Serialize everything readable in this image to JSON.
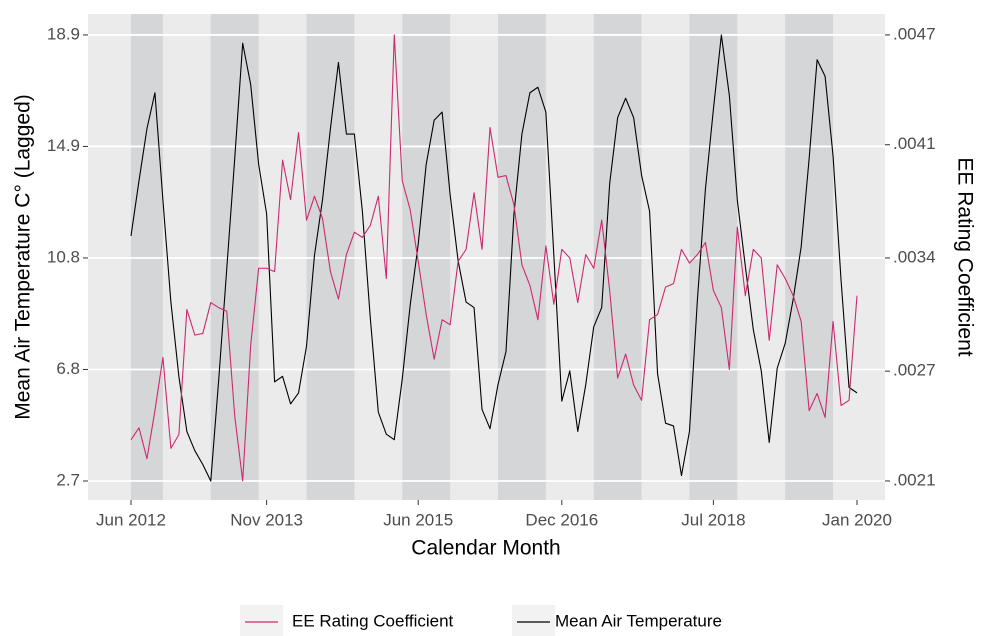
{
  "chart_data": {
    "type": "line",
    "x_label": "Calendar Month",
    "y_label": "Mean Air Temperature C° (Lagged)",
    "y2_label": "EE Rating Coefficient",
    "x": [
      "Jun 2012",
      "Jul 2012",
      "Aug 2012",
      "Sep 2012",
      "Oct 2012",
      "Nov 2012",
      "Dec 2012",
      "Jan 2013",
      "Feb 2013",
      "Mar 2013",
      "Apr 2013",
      "May 2013",
      "Jun 2013",
      "Jul 2013",
      "Aug 2013",
      "Sep 2013",
      "Oct 2013",
      "Nov 2013",
      "Dec 2013",
      "Jan 2014",
      "Feb 2014",
      "Mar 2014",
      "Apr 2014",
      "May 2014",
      "Jun 2014",
      "Jul 2014",
      "Aug 2014",
      "Sep 2014",
      "Oct 2014",
      "Nov 2014",
      "Dec 2014",
      "Jan 2015",
      "Feb 2015",
      "Mar 2015",
      "Apr 2015",
      "May 2015",
      "Jun 2015",
      "Jul 2015",
      "Aug 2015",
      "Sep 2015",
      "Oct 2015",
      "Nov 2015",
      "Dec 2015",
      "Jan 2016",
      "Feb 2016",
      "Mar 2016",
      "Apr 2016",
      "May 2016",
      "Jun 2016",
      "Jul 2016",
      "Aug 2016",
      "Sep 2016",
      "Oct 2016",
      "Nov 2016",
      "Dec 2016",
      "Jan 2017",
      "Feb 2017",
      "Mar 2017",
      "Apr 2017",
      "May 2017",
      "Jun 2017",
      "Jul 2017",
      "Aug 2017",
      "Sep 2017",
      "Oct 2017",
      "Nov 2017",
      "Dec 2017",
      "Jan 2018",
      "Feb 2018",
      "Mar 2018",
      "Apr 2018",
      "May 2018",
      "Jun 2018",
      "Jul 2018",
      "Aug 2018",
      "Sep 2018",
      "Oct 2018",
      "Nov 2018",
      "Dec 2018",
      "Jan 2019",
      "Feb 2019",
      "Mar 2019",
      "Apr 2019",
      "May 2019",
      "Jun 2019",
      "Jul 2019",
      "Aug 2019",
      "Sep 2019",
      "Oct 2019",
      "Nov 2019",
      "Dec 2019",
      "Jan 2020"
    ],
    "xlim": [
      "Jun 2012",
      "Jan 2020"
    ],
    "xticks": [
      "Jun 2012",
      "Nov 2013",
      "Jun 2015",
      "Dec 2016",
      "Jul 2018",
      "Jan 2020"
    ],
    "bands": [
      [
        "Jun 2012",
        "Oct 2012"
      ],
      [
        "Apr 2013",
        "Oct 2013"
      ],
      [
        "Apr 2014",
        "Oct 2014"
      ],
      [
        "Apr 2015",
        "Oct 2015"
      ],
      [
        "Apr 2016",
        "Oct 2016"
      ],
      [
        "Apr 2017",
        "Oct 2017"
      ],
      [
        "Apr 2018",
        "Oct 2018"
      ],
      [
        "Apr 2019",
        "Oct 2019"
      ]
    ],
    "band_color": "#d5d6d8",
    "ylim": [
      2.01,
      19.66
    ],
    "yticks": [
      2.7,
      {
        "value": 6.75,
        "label": "6.8"
      },
      10.8,
      {
        "value": 14.85,
        "label": "14.9"
      },
      18.9
    ],
    "y2lim": [
      0.001989,
      0.004822
    ],
    "y2ticks": [
      {
        "value": 0.0021,
        "label": ".0021"
      },
      {
        "value": 0.00274,
        "label": ".0027"
      },
      {
        "value": 0.0034,
        "label": ".0034"
      },
      {
        "value": 0.00406,
        "label": ".0041"
      },
      {
        "value": 0.0047,
        "label": ".0047"
      }
    ],
    "grid": true,
    "legend": "bottom",
    "series": [
      {
        "name": "EE Rating Coefficient",
        "color": "#cc2a6f",
        "axis": "y2",
        "values": [
          0.00234,
          0.00241,
          0.00223,
          0.00251,
          0.00282,
          0.00229,
          0.00237,
          0.0031,
          0.00295,
          0.00296,
          0.00314,
          0.00311,
          0.00309,
          0.00248,
          0.0021,
          0.00289,
          0.00334,
          0.00334,
          0.00332,
          0.00397,
          0.00374,
          0.00413,
          0.00362,
          0.00376,
          0.00363,
          0.00332,
          0.00316,
          0.00342,
          0.00355,
          0.00352,
          0.00359,
          0.00376,
          0.00328,
          0.0047,
          0.00385,
          0.00368,
          0.00338,
          0.00307,
          0.00281,
          0.00304,
          0.00301,
          0.00338,
          0.00345,
          0.00378,
          0.00345,
          0.00416,
          0.00387,
          0.00388,
          0.00371,
          0.00336,
          0.00324,
          0.00304,
          0.00347,
          0.00313,
          0.00345,
          0.0034,
          0.00314,
          0.00342,
          0.00334,
          0.00362,
          0.00321,
          0.0027,
          0.00284,
          0.00266,
          0.00257,
          0.00304,
          0.00307,
          0.00323,
          0.00325,
          0.00345,
          0.00337,
          0.00342,
          0.00349,
          0.00321,
          0.00311,
          0.00275,
          0.00358,
          0.00318,
          0.00345,
          0.0034,
          0.00292,
          0.00336,
          0.00328,
          0.00318,
          0.00303,
          0.00251,
          0.00261,
          0.00247,
          0.00303,
          0.00254,
          0.00257,
          0.00318
        ]
      },
      {
        "name": "Mean Air Temperature",
        "color": "#000000",
        "values": [
          11.6,
          13.6,
          15.5,
          16.8,
          12.9,
          9.2,
          6.5,
          4.5,
          3.8,
          3.3,
          2.7,
          6.4,
          10.4,
          14.4,
          18.6,
          17.1,
          14.2,
          12.4,
          6.3,
          6.5,
          5.5,
          5.9,
          7.6,
          10.9,
          12.9,
          15.5,
          17.9,
          15.3,
          15.3,
          12.5,
          8.6,
          5.2,
          4.4,
          4.2,
          6.4,
          9.1,
          11.3,
          14.2,
          15.8,
          16.1,
          13.1,
          10.7,
          9.2,
          9.0,
          5.3,
          4.6,
          6.2,
          7.4,
          12.4,
          15.3,
          16.8,
          17.0,
          16.1,
          10.9,
          5.6,
          6.7,
          4.5,
          6.2,
          8.3,
          9.0,
          13.5,
          15.9,
          16.6,
          15.9,
          13.8,
          12.5,
          6.6,
          4.8,
          4.7,
          2.9,
          4.5,
          9.3,
          13.3,
          16.2,
          18.9,
          16.7,
          12.9,
          10.5,
          8.2,
          6.7,
          4.1,
          6.8,
          7.7,
          9.3,
          11.2,
          14.4,
          18.0,
          17.4,
          14.5,
          10.0,
          6.1,
          5.9
        ]
      }
    ]
  }
}
